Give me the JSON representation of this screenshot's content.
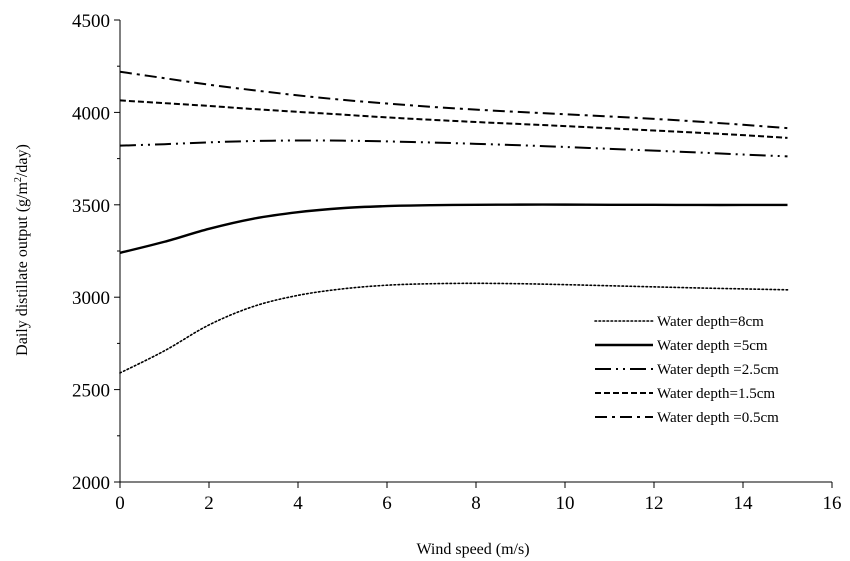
{
  "chart_data": {
    "type": "line",
    "xlabel": "Wind speed (m/s)",
    "ylabel_main": "Daily distillate output (g/m",
    "ylabel_sup": "2",
    "ylabel_end": "/day)",
    "xlim": [
      0,
      16
    ],
    "ylim": [
      2000,
      4500
    ],
    "xticks": [
      "0",
      "2",
      "4",
      "6",
      "8",
      "10",
      "12",
      "14",
      "16"
    ],
    "yticks": [
      "2000",
      "2500",
      "3000",
      "3500",
      "4000",
      "4500"
    ],
    "grid": false,
    "legend_position": "bottom-right",
    "series": [
      {
        "name": "Water depth=8cm",
        "line_style": "dotted",
        "x": [
          0,
          1,
          2,
          3,
          4,
          5,
          6,
          7,
          8,
          9,
          10,
          11,
          12,
          13,
          14,
          15
        ],
        "y": [
          2590,
          2710,
          2850,
          2950,
          3010,
          3045,
          3065,
          3073,
          3075,
          3073,
          3068,
          3062,
          3056,
          3050,
          3045,
          3040
        ]
      },
      {
        "name": "Water depth =5cm",
        "line_style": "solid",
        "x": [
          0,
          1,
          2,
          3,
          4,
          5,
          6,
          7,
          8,
          9,
          10,
          11,
          12,
          13,
          14,
          15
        ],
        "y": [
          3240,
          3300,
          3370,
          3425,
          3460,
          3482,
          3493,
          3498,
          3500,
          3501,
          3501,
          3500,
          3500,
          3499,
          3499,
          3499
        ]
      },
      {
        "name": "Water depth =2.5cm",
        "line_style": "long-dash-dot-dot",
        "x": [
          0,
          1,
          2,
          3,
          4,
          5,
          6,
          7,
          8,
          9,
          10,
          11,
          12,
          13,
          14,
          15
        ],
        "y": [
          3820,
          3828,
          3838,
          3845,
          3848,
          3847,
          3843,
          3837,
          3830,
          3822,
          3813,
          3803,
          3793,
          3783,
          3772,
          3762
        ]
      },
      {
        "name": "Water depth=1.5cm",
        "line_style": "dashed",
        "x": [
          0,
          1,
          2,
          3,
          4,
          5,
          6,
          7,
          8,
          9,
          10,
          11,
          12,
          13,
          14,
          15
        ],
        "y": [
          4065,
          4050,
          4035,
          4018,
          4003,
          3988,
          3973,
          3960,
          3948,
          3937,
          3926,
          3914,
          3902,
          3890,
          3877,
          3862
        ]
      },
      {
        "name": "Water depth =0.5cm",
        "line_style": "dash-dot",
        "x": [
          0,
          1,
          2,
          3,
          4,
          5,
          6,
          7,
          8,
          9,
          10,
          11,
          12,
          13,
          14,
          15
        ],
        "y": [
          4220,
          4185,
          4150,
          4120,
          4092,
          4068,
          4048,
          4030,
          4015,
          4002,
          3990,
          3978,
          3965,
          3950,
          3933,
          3915
        ]
      }
    ]
  }
}
